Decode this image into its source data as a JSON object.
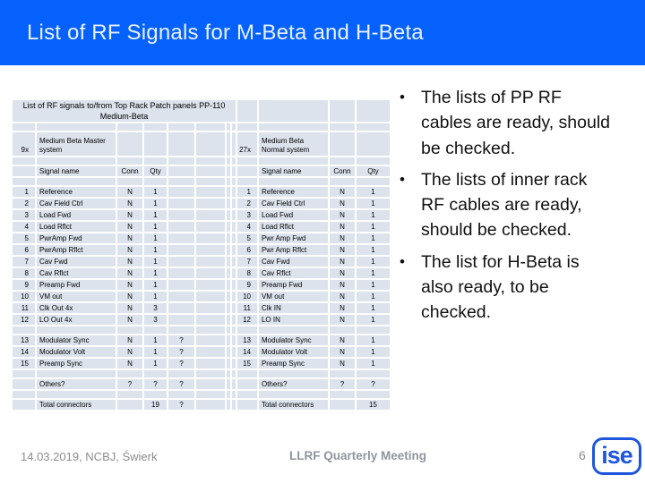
{
  "slide": {
    "title": "List of RF Signals for M-Beta and H-Beta"
  },
  "colors": {
    "banner_blue": "#0561fb",
    "banner_text": "#e9f2fe",
    "cell_bg": "#dce3ec",
    "footer_gray": "#8c8c8c",
    "logo_blue": "#1e56dd"
  },
  "table": {
    "title_line1": "List of RF signals to/from Top Rack Patch panels PP-110",
    "title_line2": "Medium-Beta",
    "left": {
      "count": "9x",
      "system": "Medium Beta Master system",
      "headers": {
        "name": "Signal name",
        "conn": "Conn",
        "qty": "Qty"
      },
      "rows": [
        {
          "n": "1",
          "name": "Reference",
          "conn": "N",
          "qty": "1",
          "extra": ""
        },
        {
          "n": "2",
          "name": "Cav Field Ctrl",
          "conn": "N",
          "qty": "1",
          "extra": ""
        },
        {
          "n": "3",
          "name": "Load Fwd",
          "conn": "N",
          "qty": "1",
          "extra": ""
        },
        {
          "n": "4",
          "name": "Load Rflct",
          "conn": "N",
          "qty": "1",
          "extra": ""
        },
        {
          "n": "5",
          "name": "PwrAmp Fwd",
          "conn": "N",
          "qty": "1",
          "extra": ""
        },
        {
          "n": "6",
          "name": "PwrAmp Rflct",
          "conn": "N",
          "qty": "1",
          "extra": ""
        },
        {
          "n": "7",
          "name": "Cav Fwd",
          "conn": "N",
          "qty": "1",
          "extra": ""
        },
        {
          "n": "8",
          "name": "Cav Rflct",
          "conn": "N",
          "qty": "1",
          "extra": ""
        },
        {
          "n": "9",
          "name": "Preamp Fwd",
          "conn": "N",
          "qty": "1",
          "extra": ""
        },
        {
          "n": "10",
          "name": "VM out",
          "conn": "N",
          "qty": "1",
          "extra": ""
        },
        {
          "n": "11",
          "name": "Clk Out 4x",
          "conn": "N",
          "qty": "3",
          "extra": ""
        },
        {
          "n": "12",
          "name": "LO Out 4x",
          "conn": "N",
          "qty": "3",
          "extra": ""
        },
        {
          "n": "13",
          "name": "Modulator Sync",
          "conn": "N",
          "qty": "1",
          "extra": "?"
        },
        {
          "n": "14",
          "name": "Modulator Volt",
          "conn": "N",
          "qty": "1",
          "extra": "?"
        },
        {
          "n": "15",
          "name": "Preamp Sync",
          "conn": "N",
          "qty": "1",
          "extra": "?"
        }
      ],
      "others": {
        "label": "Others?",
        "conn": "?",
        "qty": "?",
        "extra": "?"
      },
      "total": {
        "label": "Total connectors",
        "qty": "19",
        "extra": "?"
      }
    },
    "right": {
      "count": "27x",
      "system": "Medium Beta Normal system",
      "headers": {
        "name": "Signal name",
        "conn": "Conn",
        "qty": "Qty"
      },
      "rows": [
        {
          "n": "1",
          "name": "Reference",
          "conn": "N",
          "qty": "1"
        },
        {
          "n": "2",
          "name": "Cav Field Ctrl",
          "conn": "N",
          "qty": "1"
        },
        {
          "n": "3",
          "name": "Load Fwd",
          "conn": "N",
          "qty": "1"
        },
        {
          "n": "4",
          "name": "Load Rflct",
          "conn": "N",
          "qty": "1"
        },
        {
          "n": "5",
          "name": "Pwr Amp Fwd",
          "conn": "N",
          "qty": "1"
        },
        {
          "n": "6",
          "name": "Pwr Amp Rflct",
          "conn": "N",
          "qty": "1"
        },
        {
          "n": "7",
          "name": "Cav Fwd",
          "conn": "N",
          "qty": "1"
        },
        {
          "n": "8",
          "name": "Cav Rflct",
          "conn": "N",
          "qty": "1"
        },
        {
          "n": "9",
          "name": "Preamp Fwd",
          "conn": "N",
          "qty": "1"
        },
        {
          "n": "10",
          "name": "VM out",
          "conn": "N",
          "qty": "1"
        },
        {
          "n": "11",
          "name": "Clk IN",
          "conn": "N",
          "qty": "1"
        },
        {
          "n": "12",
          "name": "LO IN",
          "conn": "N",
          "qty": "1"
        },
        {
          "n": "13",
          "name": "Modulator Sync",
          "conn": "N",
          "qty": "1"
        },
        {
          "n": "14",
          "name": "Modulator Volt",
          "conn": "N",
          "qty": "1"
        },
        {
          "n": "15",
          "name": "Preamp Sync",
          "conn": "N",
          "qty": "1"
        }
      ],
      "others": {
        "label": "Others?",
        "conn": "?",
        "qty": "?"
      },
      "total": {
        "label": "Total connectors",
        "qty": "15"
      }
    }
  },
  "bullets": [
    "The lists of PP RF cables are ready, should be checked.",
    "The lists of inner rack RF cables are ready, should be checked.",
    "The list for H-Beta is also ready, to be checked."
  ],
  "footer": {
    "date": "14.03.2019, NCBJ, Świerk",
    "center": "LLRF Quarterly Meeting",
    "page": "6",
    "logo": "ise"
  }
}
